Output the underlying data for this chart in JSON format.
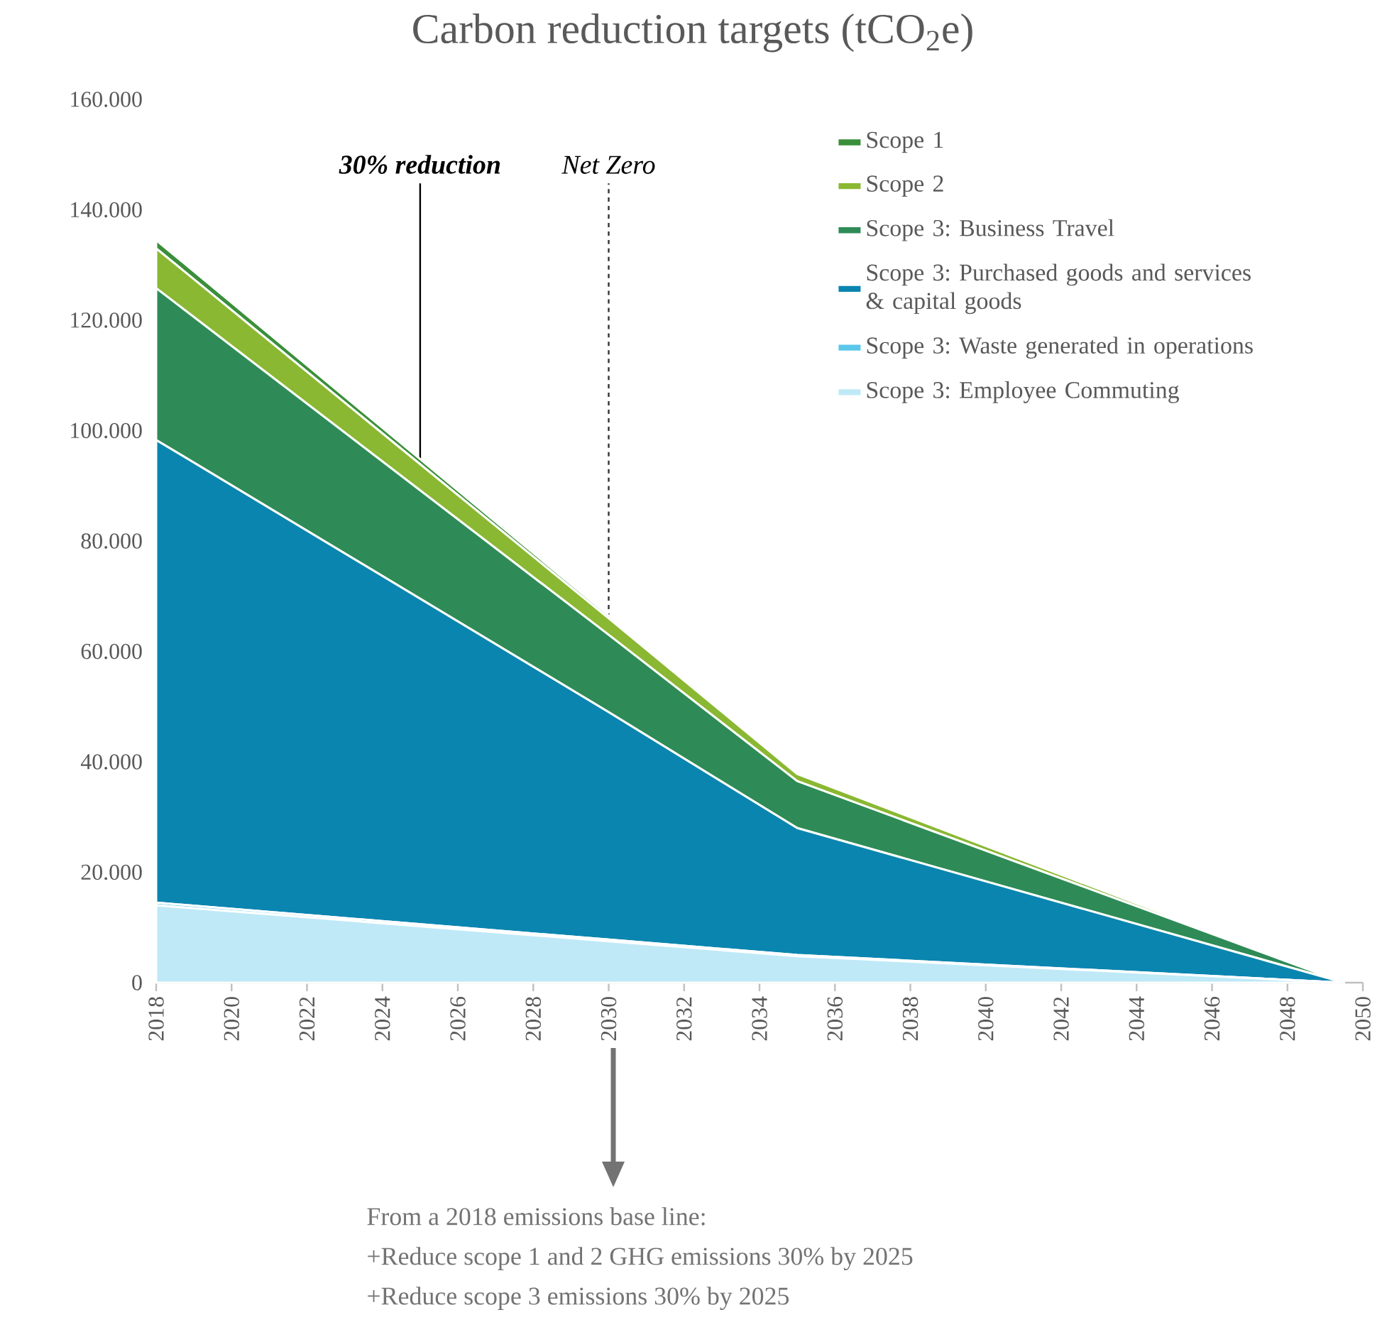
{
  "chart_data": {
    "type": "area",
    "title": "Carbon reduction targets (tCO$_{2}$e)",
    "stacked": true,
    "legend": "top right",
    "x": [
      2018,
      2030,
      2035,
      2049.5
    ],
    "series": [
      {
        "name": "Scope 3: Employee Commuting",
        "color": "#bfe9f7",
        "values": [
          14000,
          7500,
          4800,
          0
        ]
      },
      {
        "name": "Scope 3: Waste generated in operations",
        "color": "#5bc8ea",
        "values": [
          500,
          300,
          200,
          0
        ]
      },
      {
        "name": "Scope 3: Purchased goods and services & capital goods",
        "color": "#0a85b0",
        "values": [
          83800,
          41200,
          23000,
          0
        ]
      },
      {
        "name": "Scope 3: Business Travel",
        "color": "#2e8b57",
        "values": [
          27500,
          14000,
          8500,
          0
        ]
      },
      {
        "name": "Scope 2",
        "color": "#8ab832",
        "values": [
          7200,
          3000,
          1300,
          0
        ]
      },
      {
        "name": "Scope 1",
        "color": "#3a8f3a",
        "values": [
          1500,
          500,
          200,
          0
        ]
      }
    ],
    "xlim": [
      2018,
      2050
    ],
    "xticks": [
      2018,
      2020,
      2022,
      2024,
      2026,
      2028,
      2030,
      2032,
      2034,
      2036,
      2038,
      2040,
      2042,
      2044,
      2046,
      2048,
      2050
    ],
    "ylim": [
      0,
      160000
    ],
    "yticks": [
      0,
      {
        "value": 20000,
        "label": "20.000"
      },
      {
        "value": 40000,
        "label": "40.000"
      },
      {
        "value": 60000,
        "label": "60.000"
      },
      {
        "value": 80000,
        "label": "80.000"
      },
      {
        "value": 100000,
        "label": "100.000"
      },
      {
        "value": 120000,
        "label": "120.000"
      },
      {
        "value": 140000,
        "label": "140.000"
      },
      {
        "value": 160000,
        "label": "160.000"
      }
    ],
    "ref_lines": [
      {
        "axis": "x",
        "value": 2025,
        "label": "30% reduction",
        "color": "#000000",
        "line_style": "solid"
      },
      {
        "axis": "x",
        "value": 2030,
        "label": "Net Zero",
        "color": "#333333",
        "line_style": "dashed"
      }
    ],
    "annotations": [
      "From a 2018 emissions base line:",
      "+Reduce scope 1 and 2 GHG emissions 30% by 2025",
      "+Reduce scope 3 emissions 30% by 2025"
    ]
  }
}
